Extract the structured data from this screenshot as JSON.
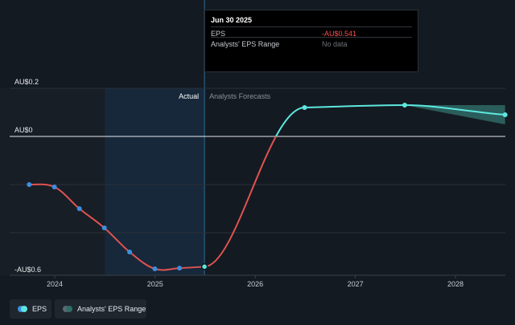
{
  "chart_data": {
    "type": "line",
    "x_ticks": [
      "2024",
      "2025",
      "2026",
      "2027",
      "2028"
    ],
    "y_ticks": [
      "AU$0.2",
      "AU$0",
      "-AU$0.6"
    ],
    "region_labels": {
      "actual": "Actual",
      "forecast": "Analysts Forecasts"
    },
    "series": [
      {
        "name": "EPS",
        "color": "#e05252",
        "points": [
          {
            "x": "2023-09-30",
            "y": -0.2
          },
          {
            "x": "2023-12-31",
            "y": -0.21
          },
          {
            "x": "2024-03-31",
            "y": -0.3
          },
          {
            "x": "2024-06-30",
            "y": -0.38
          },
          {
            "x": "2024-09-30",
            "y": -0.48
          },
          {
            "x": "2024-12-31",
            "y": -0.55
          },
          {
            "x": "2025-03-31",
            "y": -0.547
          },
          {
            "x": "2025-06-30",
            "y": -0.541
          }
        ]
      },
      {
        "name": "EPS forecast",
        "color": "#5ce8e0",
        "points": [
          {
            "x": "2025-06-30",
            "y": -0.541
          },
          {
            "x": "2026-06-30",
            "y": 0.12
          },
          {
            "x": "2027-06-30",
            "y": 0.13
          },
          {
            "x": "2028-06-30",
            "y": 0.09
          }
        ]
      }
    ],
    "range_band": {
      "name": "Analysts' EPS Range",
      "points": [
        {
          "x": "2027-06-30",
          "high": 0.13,
          "low": 0.13
        },
        {
          "x": "2028-06-30",
          "high": 0.13,
          "low": 0.05
        }
      ]
    },
    "ylim": [
      -0.6,
      0.2
    ],
    "grid": true
  },
  "tooltip": {
    "date": "Jun 30 2025",
    "eps_label": "EPS",
    "eps_value": "-AU$0.541",
    "range_label": "Analysts' EPS Range",
    "range_value": "No data"
  },
  "legend": {
    "eps_label": "EPS",
    "range_label": "Analysts' EPS Range"
  },
  "colors": {
    "eps_line": "#e05252",
    "eps_point": "#3b8fe0",
    "forecast_line": "#5ce8e0",
    "range_band": "#2f6e6a",
    "negative_value": "#ff4d4d"
  }
}
